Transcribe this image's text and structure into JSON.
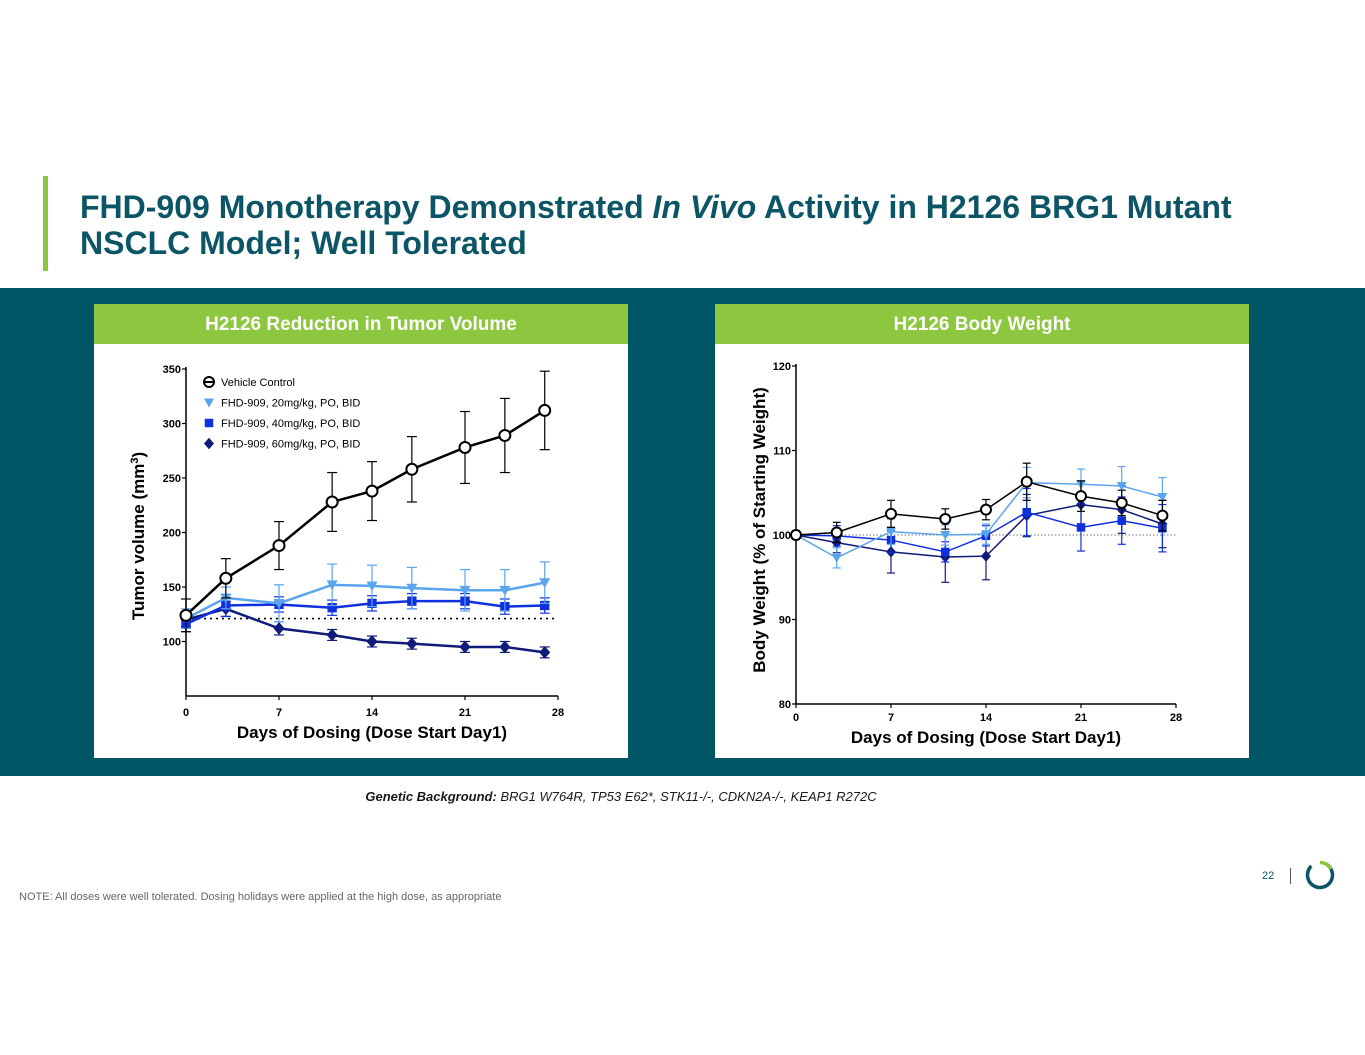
{
  "title": {
    "part1": "FHD-909 Monotherapy Demonstrated ",
    "italic": "In Vivo",
    "part2": " Activity in H2126 BRG1 Mutant NSCLC Model; Well Tolerated"
  },
  "left_panel": {
    "header": "H2126 Reduction in Tumor Volume"
  },
  "right_panel": {
    "header": "H2126 Body Weight"
  },
  "genetic": {
    "label": "Genetic Background:",
    "text": " BRG1 W764R, TP53 E62*, STK11-/-, CDKN2A-/-, KEAP1 R272C"
  },
  "note": "NOTE: All doses were well tolerated. Dosing holidays were applied at the high dose, as appropriate",
  "page_number": "22",
  "colors": {
    "vehicle": "#000000",
    "d20": "#5aa5ee",
    "d40": "#1030dd",
    "d60": "#101a78",
    "green": "#8dc63f",
    "teal": "#005665"
  },
  "chart_data": [
    {
      "type": "line",
      "title": "H2126 Reduction in Tumor Volume",
      "xlabel": "Days of Dosing (Dose Start Day1)",
      "ylabel": "Tumor volume (mm",
      "ylabel_sup": "3",
      "ylabel_end": ")",
      "xlim": [
        0,
        28
      ],
      "ylim": [
        50,
        350
      ],
      "xticks": [
        0,
        7,
        14,
        21,
        28
      ],
      "yticks": [
        100,
        150,
        200,
        250,
        300,
        350
      ],
      "reference_line": 121,
      "legend": "top-left",
      "x": [
        0,
        3,
        7,
        11,
        14,
        17,
        21,
        24,
        27
      ],
      "series": [
        {
          "name": "Vehicle Control",
          "marker": "circle",
          "color": "#000000",
          "width": 2.5,
          "values": [
            124,
            158,
            188,
            228,
            238,
            258,
            278,
            289,
            312
          ],
          "errors": [
            15,
            18,
            22,
            27,
            27,
            30,
            33,
            34,
            36
          ]
        },
        {
          "name": "FHD-909, 20mg/kg, PO, BID",
          "marker": "triangle",
          "color": "#5aa5ee",
          "width": 2.5,
          "values": [
            121,
            140,
            135,
            152,
            151,
            149,
            147,
            147,
            154
          ],
          "errors": [
            9,
            10,
            17,
            19,
            19,
            19,
            19,
            19,
            19
          ]
        },
        {
          "name": "FHD-909, 40mg/kg, PO, BID",
          "marker": "square",
          "color": "#1030dd",
          "width": 2.5,
          "values": [
            116,
            133,
            134,
            131,
            135,
            137,
            137,
            132,
            133
          ],
          "errors": [
            7,
            10,
            7,
            7,
            7,
            7,
            7,
            7,
            7
          ]
        },
        {
          "name": "FHD-909, 60mg/kg, PO, BID",
          "marker": "diamond",
          "color": "#101a78",
          "width": 2.5,
          "values": [
            120,
            130,
            112,
            106,
            100,
            98,
            95,
            95,
            90
          ],
          "errors": [
            6,
            7,
            6,
            5,
            5,
            5,
            5,
            5,
            5
          ]
        }
      ]
    },
    {
      "type": "line",
      "title": "H2126 Body Weight",
      "xlabel": "Days of Dosing (Dose Start Day1)",
      "ylabel": "Body Weight (% of Starting Weight)",
      "xlim": [
        0,
        28
      ],
      "ylim": [
        80,
        120
      ],
      "xticks": [
        0,
        7,
        14,
        21,
        28
      ],
      "yticks": [
        80,
        90,
        100,
        110,
        120
      ],
      "reference_line": 100,
      "x": [
        0,
        3,
        7,
        11,
        14,
        17,
        21,
        24,
        27
      ],
      "series": [
        {
          "name": "Vehicle Control",
          "marker": "circle",
          "color": "#000000",
          "width": 1.5,
          "values": [
            100,
            100.3,
            102.5,
            101.9,
            103,
            106.3,
            104.6,
            103.8,
            102.3
          ],
          "errors": [
            0.5,
            1.2,
            1.6,
            1.2,
            1.2,
            2.2,
            1.8,
            1.5,
            1.8
          ]
        },
        {
          "name": "FHD-909, 20mg/kg, PO, BID",
          "marker": "triangle",
          "color": "#5aa5ee",
          "width": 1.5,
          "values": [
            100,
            97.3,
            100.4,
            100,
            100.1,
            106.2,
            106,
            105.8,
            104.5
          ],
          "errors": [
            0.5,
            1.2,
            1.5,
            1.2,
            1.2,
            1.8,
            1.8,
            2.3,
            2.3
          ]
        },
        {
          "name": "FHD-909, 40mg/kg, PO, BID",
          "marker": "square",
          "color": "#1030dd",
          "width": 1.5,
          "values": [
            100,
            99.9,
            99.4,
            98,
            99.9,
            102.7,
            100.9,
            101.7,
            100.8
          ],
          "errors": [
            0.5,
            1.2,
            1.5,
            1.2,
            1.2,
            2.8,
            2.8,
            2.8,
            2.8
          ]
        },
        {
          "name": "FHD-909, 60mg/kg, PO, BID",
          "marker": "diamond",
          "color": "#101a78",
          "width": 1.5,
          "values": [
            100,
            99.1,
            98,
            97.4,
            97.5,
            102.3,
            103.6,
            103,
            101.3
          ],
          "errors": [
            0.5,
            1.2,
            2.5,
            3,
            2.8,
            2.5,
            2.8,
            2.8,
            2.8
          ]
        }
      ]
    }
  ]
}
